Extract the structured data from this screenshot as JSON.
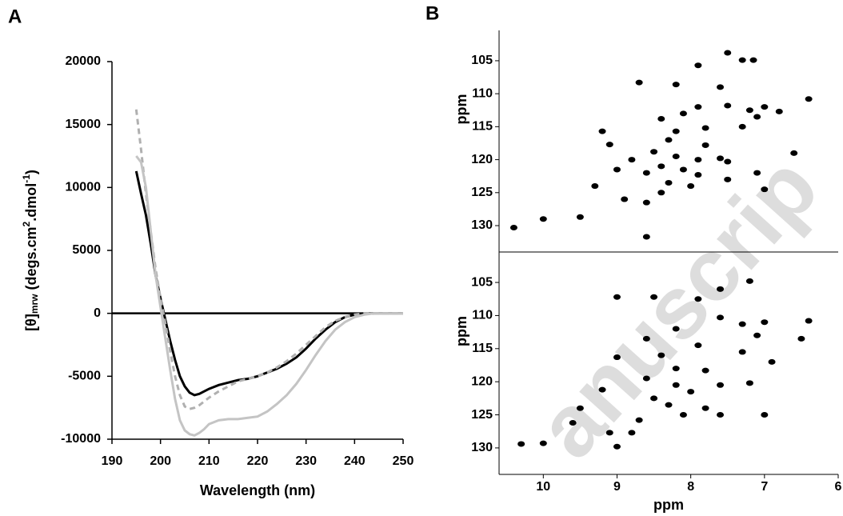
{
  "panel_labels": [
    "A",
    "B"
  ],
  "watermark": "anuscrip",
  "chart_data": [
    {
      "type": "line",
      "panel": "A",
      "xlabel": "Wavelength (nm)",
      "ylabel": [
        {
          "text": "[θ]"
        },
        {
          "text": "mrw",
          "sub": true
        },
        {
          "text": " (degs.cm"
        },
        {
          "text": "2",
          "sup": true
        },
        {
          "text": ".dmol"
        },
        {
          "text": "-1",
          "sup": true
        },
        {
          "text": ")"
        }
      ],
      "xlim": [
        190,
        250
      ],
      "xticks": [
        190,
        200,
        210,
        220,
        230,
        240,
        250
      ],
      "ylim": [
        -10000,
        20000
      ],
      "yticks": [
        -10000,
        -5000,
        0,
        5000,
        10000,
        15000,
        20000
      ],
      "x": [
        195,
        196,
        197,
        198,
        199,
        200,
        201,
        202,
        203,
        204,
        205,
        206,
        207,
        208,
        209,
        210,
        212,
        214,
        216,
        218,
        220,
        222,
        224,
        226,
        228,
        230,
        232,
        234,
        236,
        238,
        240,
        242,
        244,
        246,
        248,
        250
      ],
      "series": [
        {
          "color": "#000000",
          "dash": false,
          "values": [
            11300,
            9500,
            7800,
            5500,
            3000,
            1200,
            -500,
            -2200,
            -3700,
            -5000,
            -5800,
            -6300,
            -6500,
            -6400,
            -6200,
            -6000,
            -5700,
            -5500,
            -5300,
            -5200,
            -5000,
            -4700,
            -4400,
            -4000,
            -3500,
            -2800,
            -2000,
            -1300,
            -700,
            -300,
            -100,
            -50,
            0,
            0,
            0,
            0
          ]
        },
        {
          "color": "#b0b0b0",
          "dash": true,
          "values": [
            16200,
            13000,
            9500,
            6500,
            3500,
            1200,
            -800,
            -3000,
            -5000,
            -6500,
            -7400,
            -7600,
            -7500,
            -7300,
            -7000,
            -6700,
            -6200,
            -5800,
            -5400,
            -5200,
            -5000,
            -4700,
            -4300,
            -3800,
            -3200,
            -2500,
            -1800,
            -1100,
            -600,
            -300,
            -100,
            0,
            0,
            0,
            0,
            0
          ]
        },
        {
          "color": "#c4c4c4",
          "dash": false,
          "values": [
            12500,
            12000,
            10000,
            6500,
            3000,
            500,
            -2000,
            -4500,
            -6800,
            -8500,
            -9300,
            -9600,
            -9700,
            -9500,
            -9200,
            -8800,
            -8500,
            -8400,
            -8400,
            -8300,
            -8200,
            -7800,
            -7200,
            -6500,
            -5600,
            -4500,
            -3300,
            -2200,
            -1300,
            -700,
            -300,
            -100,
            0,
            0,
            0,
            0
          ]
        }
      ]
    },
    {
      "type": "scatter",
      "panel": "B-top",
      "ylabel": "ppm",
      "color": "#000000",
      "xlim": [
        10.6,
        6
      ],
      "ylim": [
        100.4,
        134
      ],
      "yticks": [
        105,
        110,
        115,
        120,
        125,
        130
      ],
      "x": [
        7.5,
        7.3,
        7.15,
        7.9,
        8.7,
        8.2,
        7.6,
        6.4,
        7.0,
        7.2,
        7.5,
        7.9,
        8.1,
        8.4,
        9.2,
        8.2,
        7.8,
        8.3,
        7.8,
        8.5,
        8.2,
        7.9,
        7.6,
        8.8,
        8.4,
        8.1,
        8.6,
        9.0,
        7.9,
        8.3,
        7.5,
        8.0,
        8.4,
        7.0,
        8.9,
        8.6,
        9.5,
        10.0,
        10.4,
        8.6,
        9.3,
        7.1,
        6.6,
        7.5,
        9.1,
        7.3,
        7.1,
        6.8
      ],
      "values": [
        103.8,
        104.9,
        104.9,
        105.7,
        108.3,
        108.6,
        109,
        110.8,
        112,
        112.5,
        111.8,
        112,
        113,
        113.8,
        115.7,
        115.7,
        115.2,
        117,
        117.8,
        118.8,
        119.5,
        120,
        119.8,
        120,
        121,
        121.5,
        122,
        121.5,
        122.3,
        123.5,
        123,
        124,
        125,
        124.5,
        126,
        126.5,
        128.7,
        129,
        130.3,
        131.7,
        124,
        122,
        119,
        120.3,
        117.7,
        115,
        113.5,
        112.7
      ]
    },
    {
      "type": "scatter",
      "panel": "B-bottom",
      "ylabel": "ppm",
      "xlabel": "ppm",
      "color": "#000000",
      "xlim": [
        10.6,
        6
      ],
      "ylim": [
        100.4,
        134
      ],
      "xticks": [
        10,
        9,
        8,
        7,
        6
      ],
      "yticks": [
        105,
        110,
        115,
        120,
        125,
        130
      ],
      "x": [
        7.2,
        7.6,
        9.0,
        8.5,
        7.9,
        6.4,
        7.0,
        7.3,
        7.6,
        8.2,
        8.6,
        7.9,
        7.3,
        8.4,
        9.0,
        6.9,
        8.2,
        7.8,
        8.6,
        8.2,
        7.6,
        9.2,
        8.0,
        8.5,
        7.2,
        8.3,
        7.8,
        9.5,
        8.1,
        7.6,
        7.0,
        9.6,
        9.1,
        8.8,
        10.3,
        10.0,
        9.0,
        8.7,
        6.5,
        7.1
      ],
      "values": [
        104.8,
        106,
        107.2,
        107.2,
        107.5,
        110.8,
        111,
        111.3,
        110.3,
        112,
        113.5,
        114.5,
        115.5,
        116,
        116.3,
        117,
        118,
        118.3,
        119.5,
        120.5,
        120.5,
        121.2,
        121.5,
        122.5,
        120.2,
        123.5,
        124,
        124,
        125,
        125,
        125,
        126.2,
        127.7,
        127.7,
        129.4,
        129.3,
        129.8,
        125.8,
        113.5,
        113
      ]
    }
  ]
}
